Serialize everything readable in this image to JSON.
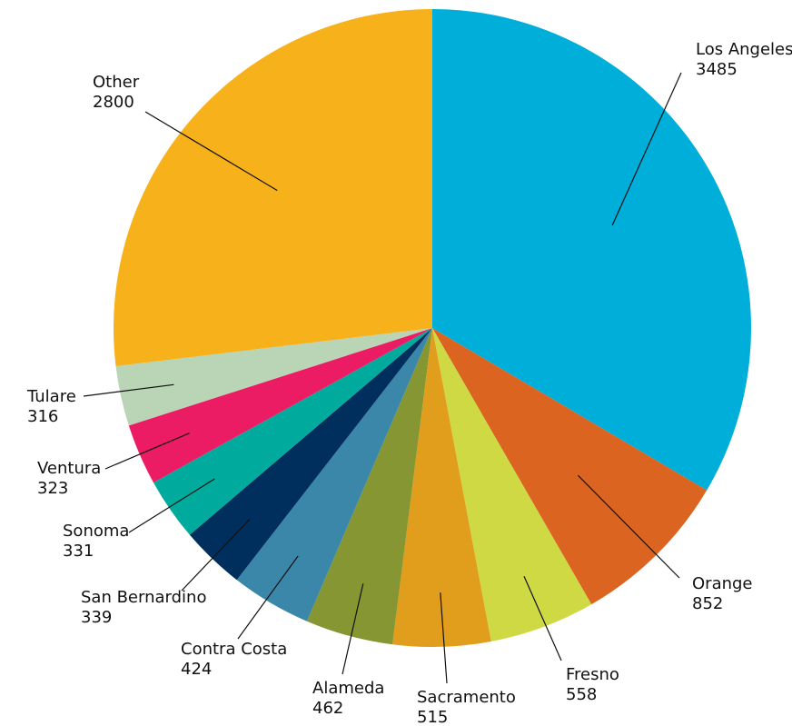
{
  "chart_data": {
    "type": "pie",
    "title": "",
    "start": "12 o'clock, clockwise",
    "slices": [
      {
        "label": "Los Angeles",
        "value": 3485,
        "color": "#00AEDA"
      },
      {
        "label": "Orange",
        "value": 852,
        "color": "#DA6420"
      },
      {
        "label": "Fresno",
        "value": 558,
        "color": "#CED944"
      },
      {
        "label": "Sacramento",
        "value": 515,
        "color": "#E09E1C"
      },
      {
        "label": "Alameda",
        "value": 462,
        "color": "#869632"
      },
      {
        "label": "Contra Costa",
        "value": 424,
        "color": "#3B87AA"
      },
      {
        "label": "San Bernardino",
        "value": 339,
        "color": "#002F5E"
      },
      {
        "label": "Sonoma",
        "value": 331,
        "color": "#00AB9E"
      },
      {
        "label": "Ventura",
        "value": 323,
        "color": "#EB1C64"
      },
      {
        "label": "Tulare",
        "value": 316,
        "color": "#B9D5B5"
      },
      {
        "label": "Other",
        "value": 2800,
        "color": "#F7B11A"
      }
    ]
  }
}
